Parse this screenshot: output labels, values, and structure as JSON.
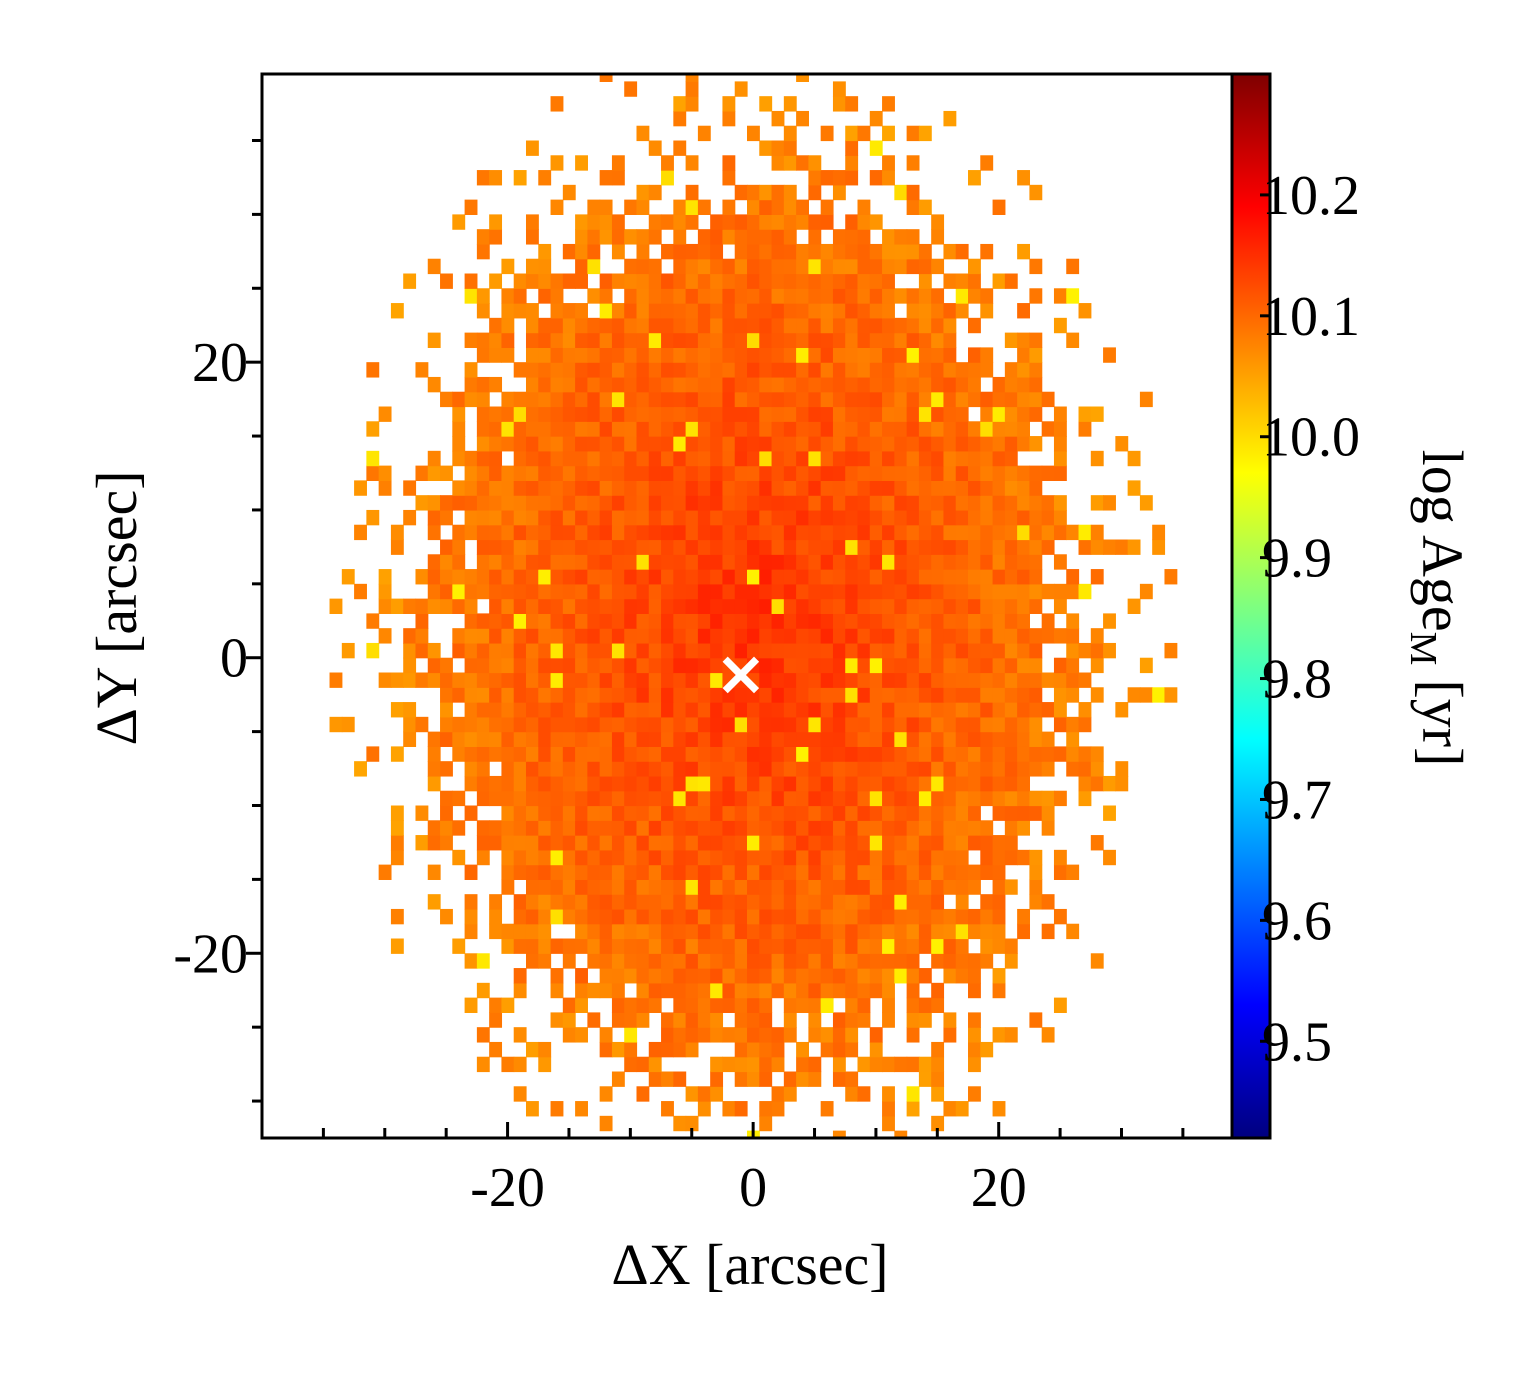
{
  "chart_data": {
    "type": "heatmap",
    "title": "",
    "xlabel": "ΔX [arcsec]",
    "ylabel": "ΔY [arcsec]",
    "xlim": [
      -40,
      39
    ],
    "ylim": [
      -32.5,
      39.5
    ],
    "x_ticks": [
      -20,
      0,
      20
    ],
    "x_tick_labels": [
      "-20",
      "0",
      "20"
    ],
    "y_ticks": [
      -20,
      0,
      20
    ],
    "y_tick_labels": [
      "-20",
      "0",
      "20"
    ],
    "pixel_size_arcsec": 1.0,
    "map_description": "Luminosity-independent mass-weighted age map; nearly uniform old ages, slightly older (redder-orange) toward the centre, slightly younger (yellow) toward the outskirts.",
    "center_marker": {
      "x": -1,
      "y": -1,
      "symbol": "×",
      "color": "#ffffff"
    },
    "field_extent": {
      "center_x": 0,
      "center_y": 2,
      "semi_x": 31,
      "semi_y": 36
    },
    "typical_values": {
      "center": 10.15,
      "outskirts": 10.07,
      "min_spots": 9.98
    },
    "colorbar": {
      "label": "log Age",
      "label_subscript": "M",
      "label_unit": "[yr]",
      "min": 9.42,
      "max": 10.3,
      "ticks": [
        9.5,
        9.6,
        9.7,
        9.8,
        9.9,
        10.0,
        10.1,
        10.2
      ],
      "tick_labels": [
        "9.5",
        "9.6",
        "9.7",
        "9.8",
        "9.9",
        "10.0",
        "10.1",
        "10.2"
      ],
      "colormap": "jet",
      "colormap_stops": [
        "#00007f",
        "#0000ff",
        "#007fff",
        "#00ffff",
        "#7fff7f",
        "#ffff00",
        "#ff7f00",
        "#ff0000",
        "#7f0000"
      ]
    }
  }
}
